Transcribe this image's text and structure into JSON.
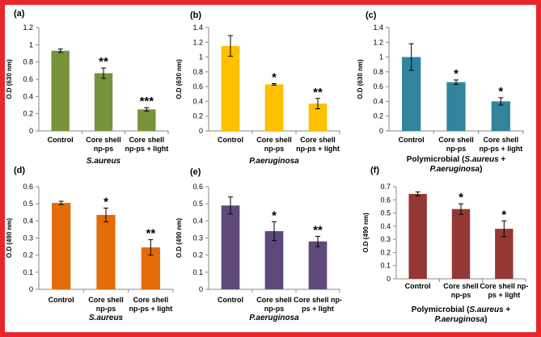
{
  "chart_data": [
    {
      "type": "bar",
      "panel_label": "(a)",
      "color": "#77933c",
      "ylabel": "O.D (630 nm)",
      "ylim": [
        0,
        1.2
      ],
      "yticks": [
        0,
        0.2,
        0.4,
        0.6,
        0.8,
        1,
        1.2
      ],
      "categories": [
        [
          "Control"
        ],
        [
          "Core shell",
          "np-ps"
        ],
        [
          "Core shell",
          "np-ps + light"
        ]
      ],
      "values": [
        0.93,
        0.67,
        0.25
      ],
      "errors": [
        0.02,
        0.06,
        0.02
      ],
      "significance": [
        "",
        "**",
        "***"
      ],
      "xlabel": [
        {
          "text": "S.aureus",
          "italic": true
        }
      ]
    },
    {
      "type": "bar",
      "panel_label": "(b)",
      "color": "#ffc000",
      "ylabel": "O.D (630 nm)",
      "ylim": [
        0,
        1.4
      ],
      "yticks": [
        0,
        0.2,
        0.4,
        0.6,
        0.8,
        1,
        1.2,
        1.4
      ],
      "categories": [
        [
          "Control"
        ],
        [
          "Core shell",
          "np-ps"
        ],
        [
          "Core shell",
          "np-ps + light"
        ]
      ],
      "values": [
        1.15,
        0.63,
        0.37
      ],
      "errors": [
        0.14,
        0.01,
        0.07
      ],
      "significance": [
        "",
        "*",
        "**"
      ],
      "xlabel": [
        {
          "text": "P.aeruginosa",
          "italic": true
        }
      ]
    },
    {
      "type": "bar",
      "panel_label": "(c)",
      "color": "#31849b",
      "ylabel": "O.D (630 nm)",
      "ylim": [
        0,
        1.4
      ],
      "yticks": [
        0,
        0.2,
        0.4,
        0.6,
        0.8,
        1,
        1.2,
        1.4
      ],
      "categories": [
        [
          "Control"
        ],
        [
          "Core shell",
          "np-ps"
        ],
        [
          "Core shell",
          "np-ps + light"
        ]
      ],
      "values": [
        1.0,
        0.66,
        0.4
      ],
      "errors": [
        0.18,
        0.03,
        0.05
      ],
      "significance": [
        "",
        "*",
        "*"
      ],
      "xlabel": [
        {
          "text": "Polymicrobial (",
          "italic": false
        },
        {
          "text": "S.aureus",
          "italic": true
        },
        {
          "text": " +",
          "italic": false
        }
      ],
      "xlabel2": [
        {
          "text": "P.aeruginosa",
          "italic": true
        },
        {
          "text": ")",
          "italic": false
        }
      ]
    },
    {
      "type": "bar",
      "panel_label": "(d)",
      "color": "#e36c09",
      "ylabel": "O.D (490 nm)",
      "ylim": [
        0,
        0.6
      ],
      "yticks": [
        0,
        0.1,
        0.2,
        0.3,
        0.4,
        0.5,
        0.6
      ],
      "categories": [
        [
          "Control"
        ],
        [
          "Core shell",
          "np-ps"
        ],
        [
          "Core shell",
          "np-ps + light"
        ]
      ],
      "values": [
        0.505,
        0.435,
        0.245
      ],
      "errors": [
        0.01,
        0.04,
        0.045
      ],
      "significance": [
        "",
        "*",
        "**"
      ],
      "xlabel": [
        {
          "text": "S.aureus",
          "italic": true
        }
      ]
    },
    {
      "type": "bar",
      "panel_label": "(e)",
      "color": "#5f497a",
      "ylabel": "O.D (490 nm)",
      "ylim": [
        0,
        0.6
      ],
      "yticks": [
        0,
        0.1,
        0.2,
        0.3,
        0.4,
        0.5,
        0.6
      ],
      "categories": [
        [
          "Control"
        ],
        [
          "Core shell",
          "np-ps"
        ],
        [
          "Core shell np-",
          "ps + light"
        ]
      ],
      "values": [
        0.49,
        0.34,
        0.28
      ],
      "errors": [
        0.05,
        0.055,
        0.03
      ],
      "significance": [
        "",
        "*",
        "**"
      ],
      "xlabel": [
        {
          "text": "P.aeruginosa",
          "italic": true
        }
      ]
    },
    {
      "type": "bar",
      "panel_label": "(f)",
      "color": "#953735",
      "ylabel": "O.D (490 nm)",
      "ylim": [
        0,
        0.7
      ],
      "yticks": [
        0,
        0.1,
        0.2,
        0.3,
        0.4,
        0.5,
        0.6,
        0.7
      ],
      "categories": [
        [
          "Control"
        ],
        [
          "Core shell",
          "np-ps"
        ],
        [
          "Core shell np-",
          "ps + light"
        ]
      ],
      "values": [
        0.645,
        0.53,
        0.38
      ],
      "errors": [
        0.015,
        0.04,
        0.06
      ],
      "significance": [
        "",
        "*",
        "*"
      ],
      "xlabel": [
        {
          "text": "Polymicrobial (",
          "italic": false
        },
        {
          "text": "S.aureus",
          "italic": true
        },
        {
          "text": " +",
          "italic": false
        }
      ],
      "xlabel2": [
        {
          "text": "P.aeruginosa",
          "italic": true
        },
        {
          "text": ")",
          "italic": false
        }
      ]
    }
  ]
}
